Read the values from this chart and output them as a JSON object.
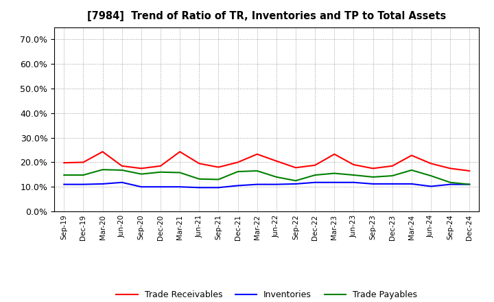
{
  "title": "[7984]  Trend of Ratio of TR, Inventories and TP to Total Assets",
  "x_labels": [
    "Sep-19",
    "Dec-19",
    "Mar-20",
    "Jun-20",
    "Sep-20",
    "Dec-20",
    "Mar-21",
    "Jun-21",
    "Sep-21",
    "Dec-21",
    "Mar-22",
    "Jun-22",
    "Sep-22",
    "Dec-22",
    "Mar-23",
    "Jun-23",
    "Sep-23",
    "Dec-23",
    "Mar-24",
    "Jun-24",
    "Sep-24",
    "Dec-24"
  ],
  "trade_receivables": [
    0.198,
    0.2,
    0.243,
    0.185,
    0.175,
    0.185,
    0.243,
    0.195,
    0.18,
    0.2,
    0.233,
    0.205,
    0.178,
    0.188,
    0.233,
    0.19,
    0.175,
    0.185,
    0.228,
    0.195,
    0.175,
    0.165
  ],
  "inventories": [
    0.11,
    0.11,
    0.112,
    0.118,
    0.1,
    0.1,
    0.1,
    0.097,
    0.097,
    0.105,
    0.11,
    0.11,
    0.112,
    0.118,
    0.118,
    0.118,
    0.112,
    0.112,
    0.112,
    0.102,
    0.11,
    0.11
  ],
  "trade_payables": [
    0.148,
    0.148,
    0.17,
    0.168,
    0.152,
    0.16,
    0.158,
    0.132,
    0.13,
    0.162,
    0.165,
    0.14,
    0.125,
    0.148,
    0.155,
    0.148,
    0.14,
    0.145,
    0.168,
    0.145,
    0.118,
    0.11
  ],
  "ylim": [
    0.0,
    0.75
  ],
  "yticks": [
    0.0,
    0.1,
    0.2,
    0.3,
    0.4,
    0.5,
    0.6,
    0.7
  ],
  "line_colors": {
    "trade_receivables": "#ff0000",
    "inventories": "#0000ff",
    "trade_payables": "#008000"
  },
  "legend_labels": [
    "Trade Receivables",
    "Inventories",
    "Trade Payables"
  ],
  "background_color": "#ffffff",
  "plot_bg_color": "#ffffff"
}
